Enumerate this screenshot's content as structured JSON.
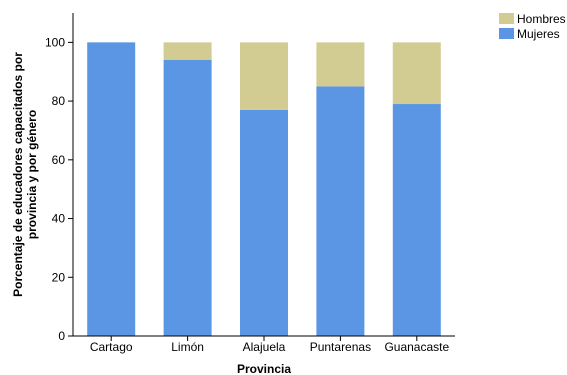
{
  "chart_data": {
    "type": "bar",
    "stacked": true,
    "categories": [
      "Cartago",
      "Limón",
      "Alajuela",
      "Puntarenas",
      "Guanacaste"
    ],
    "series": [
      {
        "name": "Mujeres",
        "values": [
          100,
          94,
          77,
          85,
          79
        ],
        "color": "#5b96e4"
      },
      {
        "name": "Hombres",
        "values": [
          0,
          6,
          23,
          15,
          21
        ],
        "color": "#d2cb92"
      }
    ],
    "title": "",
    "xlabel": "Provincia",
    "ylabel_lines": [
      "Porcentaje de educadores capacitados por",
      "provincia y por género"
    ],
    "ylim": [
      0,
      110
    ],
    "yticks": [
      0,
      20,
      40,
      60,
      80,
      100
    ],
    "grid": false,
    "legend_position": "top-right",
    "legend_order": [
      "Hombres",
      "Mujeres"
    ]
  }
}
